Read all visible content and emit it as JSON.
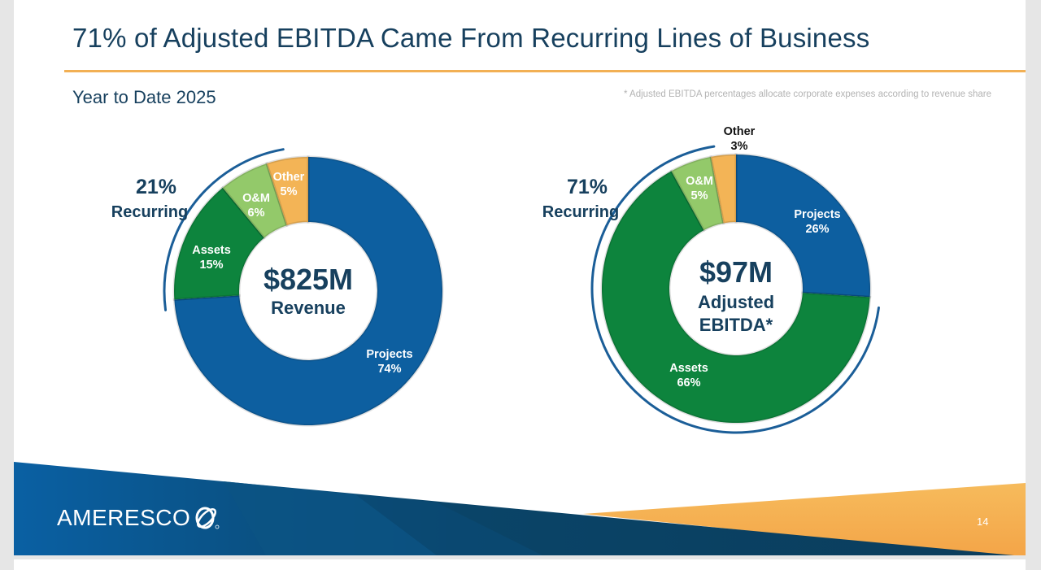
{
  "slide": {
    "title": "71% of Adjusted EBITDA Came From Recurring Lines of Business",
    "subtitle": "Year to Date 2025",
    "footnote": "* Adjusted EBITDA percentages allocate corporate expenses according to revenue share",
    "page_number": "14",
    "logo_text": "AMERESCO"
  },
  "colors": {
    "projects": "#0d5fa0",
    "assets": "#0d843d",
    "om": "#93c96a",
    "other": "#f3b456",
    "navy": "#17405e",
    "accent_rule": "#f2b054"
  },
  "chart_data": [
    {
      "type": "pie",
      "variant": "donut",
      "title": "Revenue",
      "center_value": "$825M",
      "center_label": "Revenue",
      "recurring_pct": "21%",
      "recurring_label": "Recurring",
      "slices": [
        {
          "name": "Projects",
          "value": 74,
          "label": "74%",
          "color_key": "projects"
        },
        {
          "name": "Assets",
          "value": 15,
          "label": "15%",
          "color_key": "assets"
        },
        {
          "name": "O&M",
          "value": 6,
          "label": "6%",
          "color_key": "om"
        },
        {
          "name": "Other",
          "value": 5,
          "label": "5%",
          "color_key": "other"
        }
      ]
    },
    {
      "type": "pie",
      "variant": "donut",
      "title": "Adjusted EBITDA",
      "center_value": "$97M",
      "center_label_line1": "Adjusted",
      "center_label_line2": "EBITDA*",
      "recurring_pct": "71%",
      "recurring_label": "Recurring",
      "slices": [
        {
          "name": "Projects",
          "value": 26,
          "label": "26%",
          "color_key": "projects"
        },
        {
          "name": "Assets",
          "value": 66,
          "label": "66%",
          "color_key": "assets"
        },
        {
          "name": "O&M",
          "value": 5,
          "label": "5%",
          "color_key": "om"
        },
        {
          "name": "Other",
          "value": 3,
          "label": "3%",
          "color_key": "other"
        }
      ]
    }
  ]
}
